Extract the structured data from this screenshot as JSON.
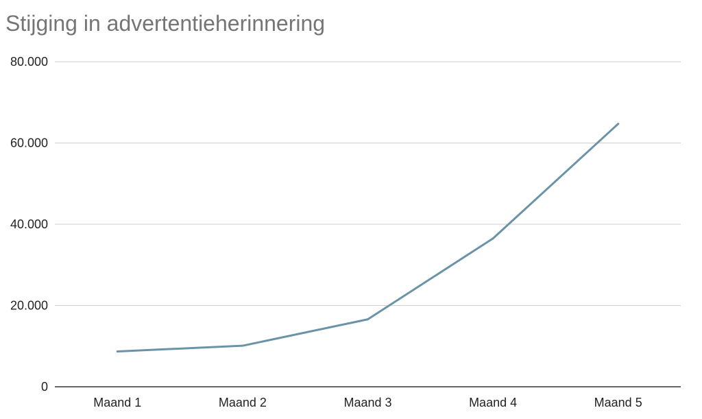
{
  "chart_data": {
    "type": "line",
    "title": "Stijging in advertentieherinnering",
    "xlabel": "",
    "ylabel": "",
    "categories": [
      "Maand 1",
      "Maand 2",
      "Maand 3",
      "Maand 4",
      "Maand 5"
    ],
    "series": [
      {
        "values": [
          8700,
          10100,
          16600,
          36500,
          64700
        ],
        "color": "#6b93a8"
      }
    ],
    "ylim": [
      0,
      80000
    ],
    "yticks": [
      0,
      20000,
      40000,
      60000,
      80000
    ],
    "ytick_labels": [
      "0",
      "20.000",
      "40.000",
      "60.000",
      "80.000"
    ],
    "grid": true,
    "legend": "none"
  }
}
